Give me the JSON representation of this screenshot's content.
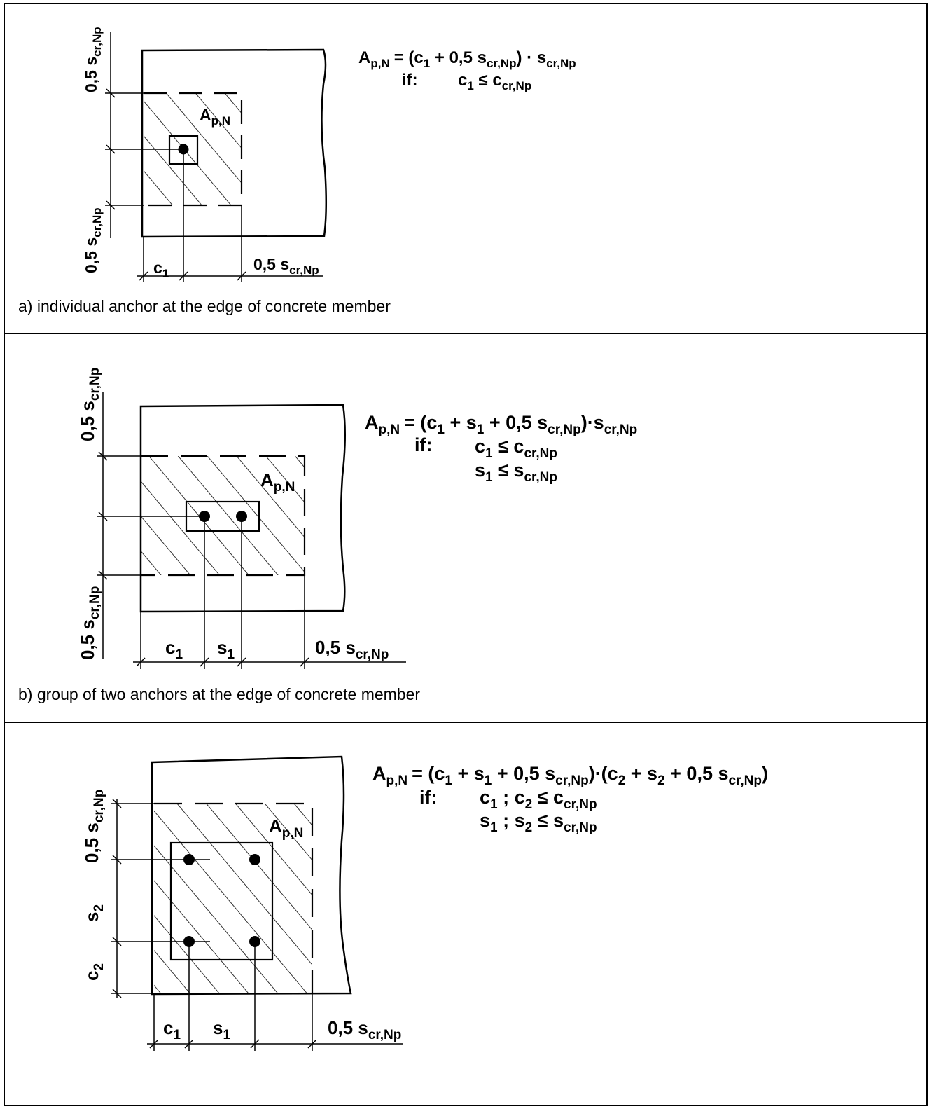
{
  "panels": [
    {
      "id": "a",
      "caption": "a) individual anchor at the edge of concrete member",
      "formula": {
        "lhs_main": "A",
        "lhs_sub": "p,N",
        "rhs_parts": [
          "= (c",
          "1",
          " + 0,5 s",
          "cr,Np",
          ") · s",
          "cr,Np"
        ],
        "if_label": "if:",
        "conditions": [
          {
            "main": "c",
            "sub": "1",
            "rel": " ≤ c",
            "sub2": "cr,Np"
          }
        ]
      },
      "labels": {
        "area": {
          "main": "A",
          "sub": "p,N"
        },
        "top_dim": {
          "main": "0,5 s",
          "sub": "cr,Np"
        },
        "bottom_dim": {
          "main": "0,5 s",
          "sub": "cr,Np"
        },
        "c1": {
          "main": "c",
          "sub": "1"
        },
        "right_dim": {
          "main": "0,5 s",
          "sub": "cr,Np"
        }
      }
    },
    {
      "id": "b",
      "caption": "b) group of two anchors at the edge of concrete member",
      "formula": {
        "lhs_main": "A",
        "lhs_sub": "p,N",
        "rhs_parts": [
          "= (c",
          "1",
          " + s",
          "1",
          " + 0,5 s",
          "cr,Np",
          ")·s",
          "cr,Np"
        ],
        "if_label": "if:",
        "conditions": [
          {
            "main": "c",
            "sub": "1",
            "rel": " ≤ c",
            "sub2": "cr,Np"
          },
          {
            "main": "s",
            "sub": "1",
            "rel": " ≤ s",
            "sub2": "cr,Np"
          }
        ]
      },
      "labels": {
        "area": {
          "main": "A",
          "sub": "p,N"
        },
        "top_dim": {
          "main": "0,5 s",
          "sub": "cr,Np"
        },
        "bottom_dim": {
          "main": "0,5 s",
          "sub": "cr,Np"
        },
        "c1": {
          "main": "c",
          "sub": "1"
        },
        "s1": {
          "main": "s",
          "sub": "1"
        },
        "right_dim": {
          "main": "0,5 s",
          "sub": "cr,Np"
        }
      }
    },
    {
      "id": "c",
      "caption": "",
      "formula": {
        "lhs_main": "A",
        "lhs_sub": "p,N",
        "rhs_parts": [
          "= (c",
          "1",
          " + s",
          "1",
          " + 0,5 s",
          "cr,Np",
          ")·(c",
          "2",
          " + s",
          "2",
          " + 0,5 s",
          "cr,Np",
          ")"
        ],
        "if_label": "if:",
        "conditions": [
          {
            "main": "c",
            "sub": "1",
            "rel": " ; c",
            "sub2": "2",
            "rel2": " ≤ c",
            "sub3": "cr,Np"
          },
          {
            "main": "s",
            "sub": "1",
            "rel": " ; s",
            "sub2": "2",
            "rel2": " ≤ s",
            "sub3": "cr,Np"
          }
        ]
      },
      "labels": {
        "area": {
          "main": "A",
          "sub": "p,N"
        },
        "top_dim": {
          "main": "0,5 s",
          "sub": "cr,Np"
        },
        "s2": {
          "main": "s",
          "sub": "2"
        },
        "c2": {
          "main": "c",
          "sub": "2"
        },
        "c1": {
          "main": "c",
          "sub": "1"
        },
        "s1": {
          "main": "s",
          "sub": "1"
        },
        "right_dim": {
          "main": "0,5 s",
          "sub": "cr,Np"
        }
      }
    }
  ]
}
